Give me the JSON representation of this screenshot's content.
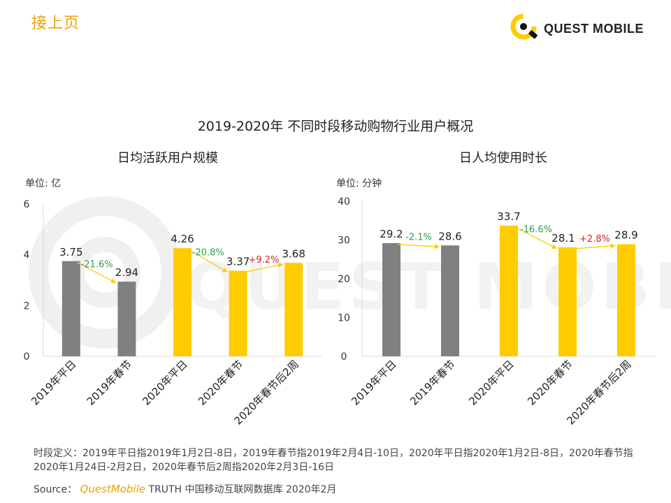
{
  "header": {
    "continue_label": "接上页",
    "logo_text": "QUEST MOBILE",
    "watermark_text": "QUEST MOBILE"
  },
  "main_title": "2019-2020年 不同时段移动购物行业用户概况",
  "colors": {
    "gray": "#808080",
    "yellow": "#ffcc00",
    "green": "#2e9e4a",
    "red": "#d9222a",
    "accent": "#f0a000"
  },
  "chart_data": [
    {
      "type": "bar",
      "title": "日均活跃用户规模",
      "unit": "单位: 亿",
      "categories": [
        "2019年平日",
        "2019年春节",
        "2020年平日",
        "2020年春节",
        "2020年春节后2周"
      ],
      "values": [
        3.75,
        2.94,
        4.26,
        3.37,
        3.68
      ],
      "value_labels": [
        "3.75",
        "2.94",
        "4.26",
        "3.37",
        "3.68"
      ],
      "bar_colors": [
        "gray",
        "gray",
        "yellow",
        "yellow",
        "yellow"
      ],
      "ylim": [
        0,
        6
      ],
      "yticks": [
        0,
        2,
        4,
        6
      ],
      "changes": [
        {
          "from": 0,
          "to": 1,
          "label": "-21.6%",
          "color": "green"
        },
        {
          "from": 2,
          "to": 3,
          "label": "-20.8%",
          "color": "green"
        },
        {
          "from": 3,
          "to": 4,
          "label": "+9.2%",
          "color": "red"
        }
      ]
    },
    {
      "type": "bar",
      "title": "日人均使用时长",
      "unit": "单位: 分钟",
      "categories": [
        "2019年平日",
        "2019年春节",
        "2020年平日",
        "2020年春节",
        "2020年春节后2周"
      ],
      "values": [
        29.2,
        28.6,
        33.7,
        28.1,
        28.9
      ],
      "value_labels": [
        "29.2",
        "28.6",
        "33.7",
        "28.1",
        "28.9"
      ],
      "bar_colors": [
        "gray",
        "gray",
        "yellow",
        "yellow",
        "yellow"
      ],
      "ylim": [
        0,
        40
      ],
      "yticks": [
        0,
        10,
        20,
        30,
        40
      ],
      "changes": [
        {
          "from": 0,
          "to": 1,
          "label": "-2.1%",
          "color": "green"
        },
        {
          "from": 2,
          "to": 3,
          "label": "-16.6%",
          "color": "green"
        },
        {
          "from": 3,
          "to": 4,
          "label": "+2.8%",
          "color": "red"
        }
      ]
    }
  ],
  "footer": {
    "definition": "时段定义：2019年平日指2019年1月2日-8日，2019年春节指2019年2月4日-10日，2020年平日指2020年1月2日-8日，2020年春节指2020年1月24日-2月2日，2020年春节后2周指2020年2月3日-16日",
    "source_label": "Source：",
    "source_brand": "QuestMobile",
    "source_rest": " TRUTH 中国移动互联网数据库 2020年2月"
  }
}
